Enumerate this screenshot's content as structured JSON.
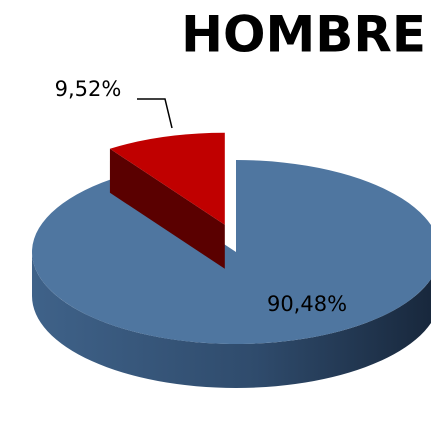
{
  "chart_data": {
    "type": "pie",
    "title": "HOMBRE",
    "values": [
      90.48,
      9.52
    ],
    "value_labels": [
      "90,48%",
      "9,52%"
    ],
    "colors": [
      "#4f76a0",
      "#c00000"
    ]
  }
}
